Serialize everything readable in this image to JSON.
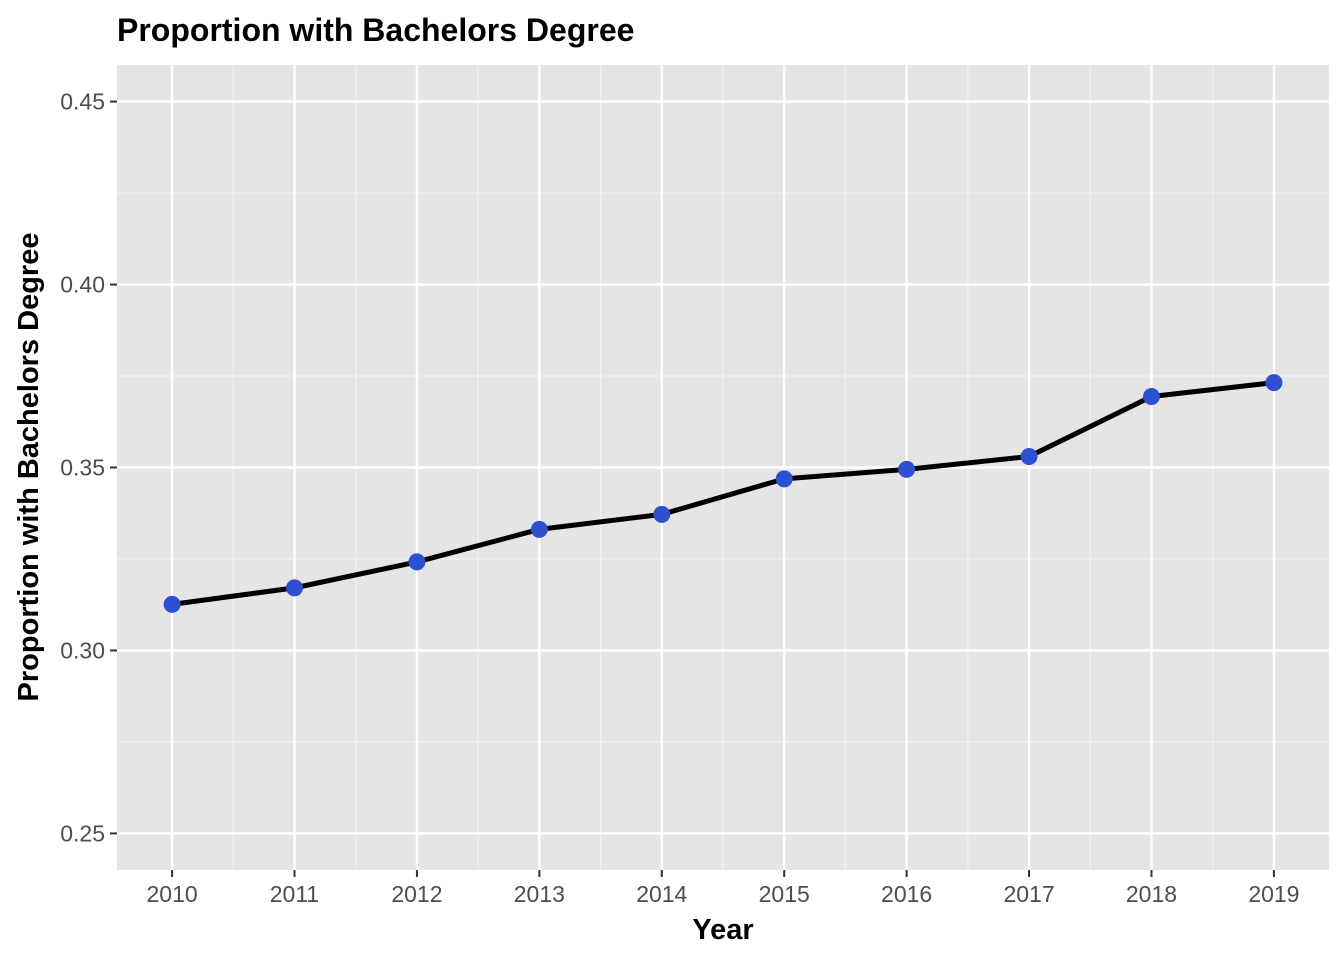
{
  "chart_data": {
    "type": "line",
    "title": "Proportion with Bachelors Degree",
    "xlabel": "Year",
    "ylabel": "Proportion with Bachelors Degree",
    "x": [
      2010,
      2011,
      2012,
      2013,
      2014,
      2015,
      2016,
      2017,
      2018,
      2019
    ],
    "series": [
      {
        "values": [
          0.3126,
          0.3171,
          0.3242,
          0.3331,
          0.3372,
          0.3469,
          0.3495,
          0.353,
          0.3694,
          0.3732
        ]
      }
    ],
    "xlim": [
      2009.55,
      2019.45
    ],
    "ylim": [
      0.24,
      0.46
    ],
    "x_ticks": [
      "2010",
      "2011",
      "2012",
      "2013",
      "2014",
      "2015",
      "2016",
      "2017",
      "2018",
      "2019"
    ],
    "y_ticks": [
      {
        "value": 0.25,
        "label": "0.25"
      },
      {
        "value": 0.3,
        "label": "0.30"
      },
      {
        "value": 0.35,
        "label": "0.35"
      },
      {
        "value": 0.4,
        "label": "0.40"
      },
      {
        "value": 0.45,
        "label": "0.45"
      }
    ],
    "grid": true,
    "legend": "none",
    "colors": {
      "panel_background": "#e5e5e5",
      "grid_major": "#ffffff",
      "grid_minor": "#f2f2f2",
      "line": "#000000",
      "points": "#2e4fd0",
      "tick_text": "#4d4d4d",
      "tick_marks": "#333333"
    }
  }
}
